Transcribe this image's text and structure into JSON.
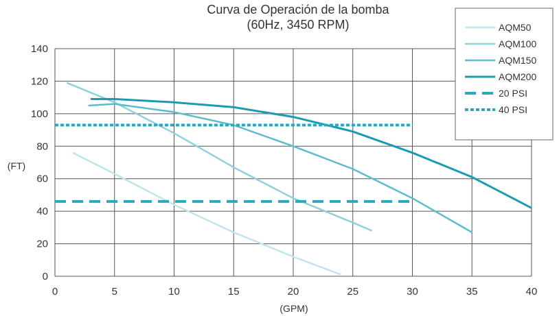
{
  "chart_data": {
    "type": "line",
    "title": "Curva de Operación de la bomba",
    "subtitle": "(60Hz, 3450 RPM)",
    "xlabel": "(GPM)",
    "ylabel": "(FT)",
    "xlim": [
      0,
      40
    ],
    "ylim": [
      0,
      140
    ],
    "xticks": [
      "0",
      "5",
      "10",
      "15",
      "20",
      "25",
      "30",
      "35",
      "40"
    ],
    "yticks": [
      "0",
      "20",
      "40",
      "60",
      "80",
      "100",
      "120",
      "140"
    ],
    "grid": true,
    "legend_position": "top-right",
    "series": [
      {
        "name": "AQM50",
        "color": "#bfe4ec",
        "style": "solid",
        "x": [
          1.5,
          5,
          10,
          15,
          20,
          24
        ],
        "y": [
          76,
          63,
          44,
          27,
          12,
          1
        ]
      },
      {
        "name": "AQM100",
        "color": "#8fd0dc",
        "style": "solid",
        "x": [
          1,
          5,
          10,
          15,
          20,
          25,
          26.6
        ],
        "y": [
          119,
          107,
          88,
          67,
          48,
          33,
          28
        ]
      },
      {
        "name": "AQM150",
        "color": "#5cbccb",
        "style": "solid",
        "x": [
          2.8,
          5,
          10,
          15,
          20,
          25,
          30,
          35
        ],
        "y": [
          105,
          106,
          101,
          93,
          80,
          66,
          48,
          27
        ]
      },
      {
        "name": "AQM200",
        "color": "#1a9bb1",
        "style": "solid",
        "x": [
          3,
          5,
          10,
          15,
          20,
          25,
          30,
          35,
          40
        ],
        "y": [
          109,
          109,
          107,
          104,
          98,
          89,
          76,
          61,
          42
        ]
      },
      {
        "name": "20 PSI",
        "color": "#2aa8bf",
        "style": "dashed",
        "x": [
          0,
          30
        ],
        "y": [
          46,
          46
        ]
      },
      {
        "name": "40 PSI",
        "color": "#2aa8bf",
        "style": "dotted",
        "x": [
          0,
          30
        ],
        "y": [
          93,
          93
        ]
      }
    ]
  }
}
